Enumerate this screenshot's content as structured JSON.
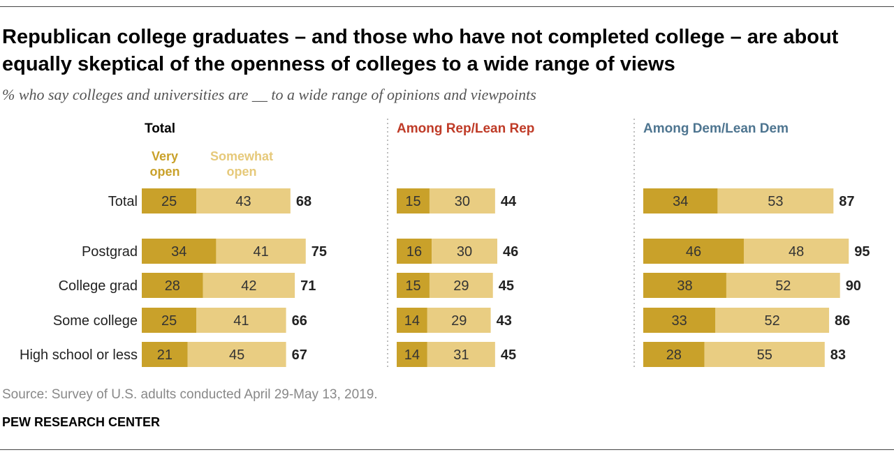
{
  "header": {
    "title": "Republican college graduates – and those who have not completed college – are about equally skeptical of the openness of colleges to a wide range of views",
    "subtitle": "% who say colleges and universities are __ to a wide range of opinions and viewpoints"
  },
  "footer": {
    "source": "Source: Survey of U.S. adults conducted April 29-May 13, 2019.",
    "org": "PEW RESEARCH CENTER"
  },
  "colors": {
    "very_open": "#C9A12A",
    "somewhat_open": "#E9CD82",
    "rep_header": "#BF3B27",
    "dem_header": "#4E7590",
    "total_header": "#000000",
    "legend_very": "#C9A12A",
    "legend_somewhat": "#E6C97A"
  },
  "chart_data": {
    "type": "bar",
    "stacked": true,
    "orientation": "horizontal",
    "legend": {
      "very_open": "Very open",
      "somewhat_open": "Somewhat open"
    },
    "categories": [
      "Total",
      "Postgrad",
      "College grad",
      "Some college",
      "High school or less"
    ],
    "panels": [
      {
        "title": "Total",
        "series": [
          {
            "name": "Very open",
            "values": [
              25,
              34,
              28,
              25,
              21
            ]
          },
          {
            "name": "Somewhat open",
            "values": [
              43,
              41,
              42,
              41,
              45
            ]
          }
        ],
        "totals": [
          68,
          75,
          71,
          66,
          67
        ]
      },
      {
        "title": "Among Rep/Lean Rep",
        "series": [
          {
            "name": "Very open",
            "values": [
              15,
              16,
              15,
              14,
              14
            ]
          },
          {
            "name": "Somewhat open",
            "values": [
              30,
              30,
              29,
              29,
              31
            ]
          }
        ],
        "totals": [
          44,
          46,
          45,
          43,
          45
        ]
      },
      {
        "title": "Among Dem/Lean Dem",
        "series": [
          {
            "name": "Very open",
            "values": [
              34,
              46,
              38,
              33,
              28
            ]
          },
          {
            "name": "Somewhat open",
            "values": [
              53,
              48,
              52,
              52,
              55
            ]
          }
        ],
        "totals": [
          87,
          95,
          90,
          86,
          83
        ]
      }
    ]
  }
}
